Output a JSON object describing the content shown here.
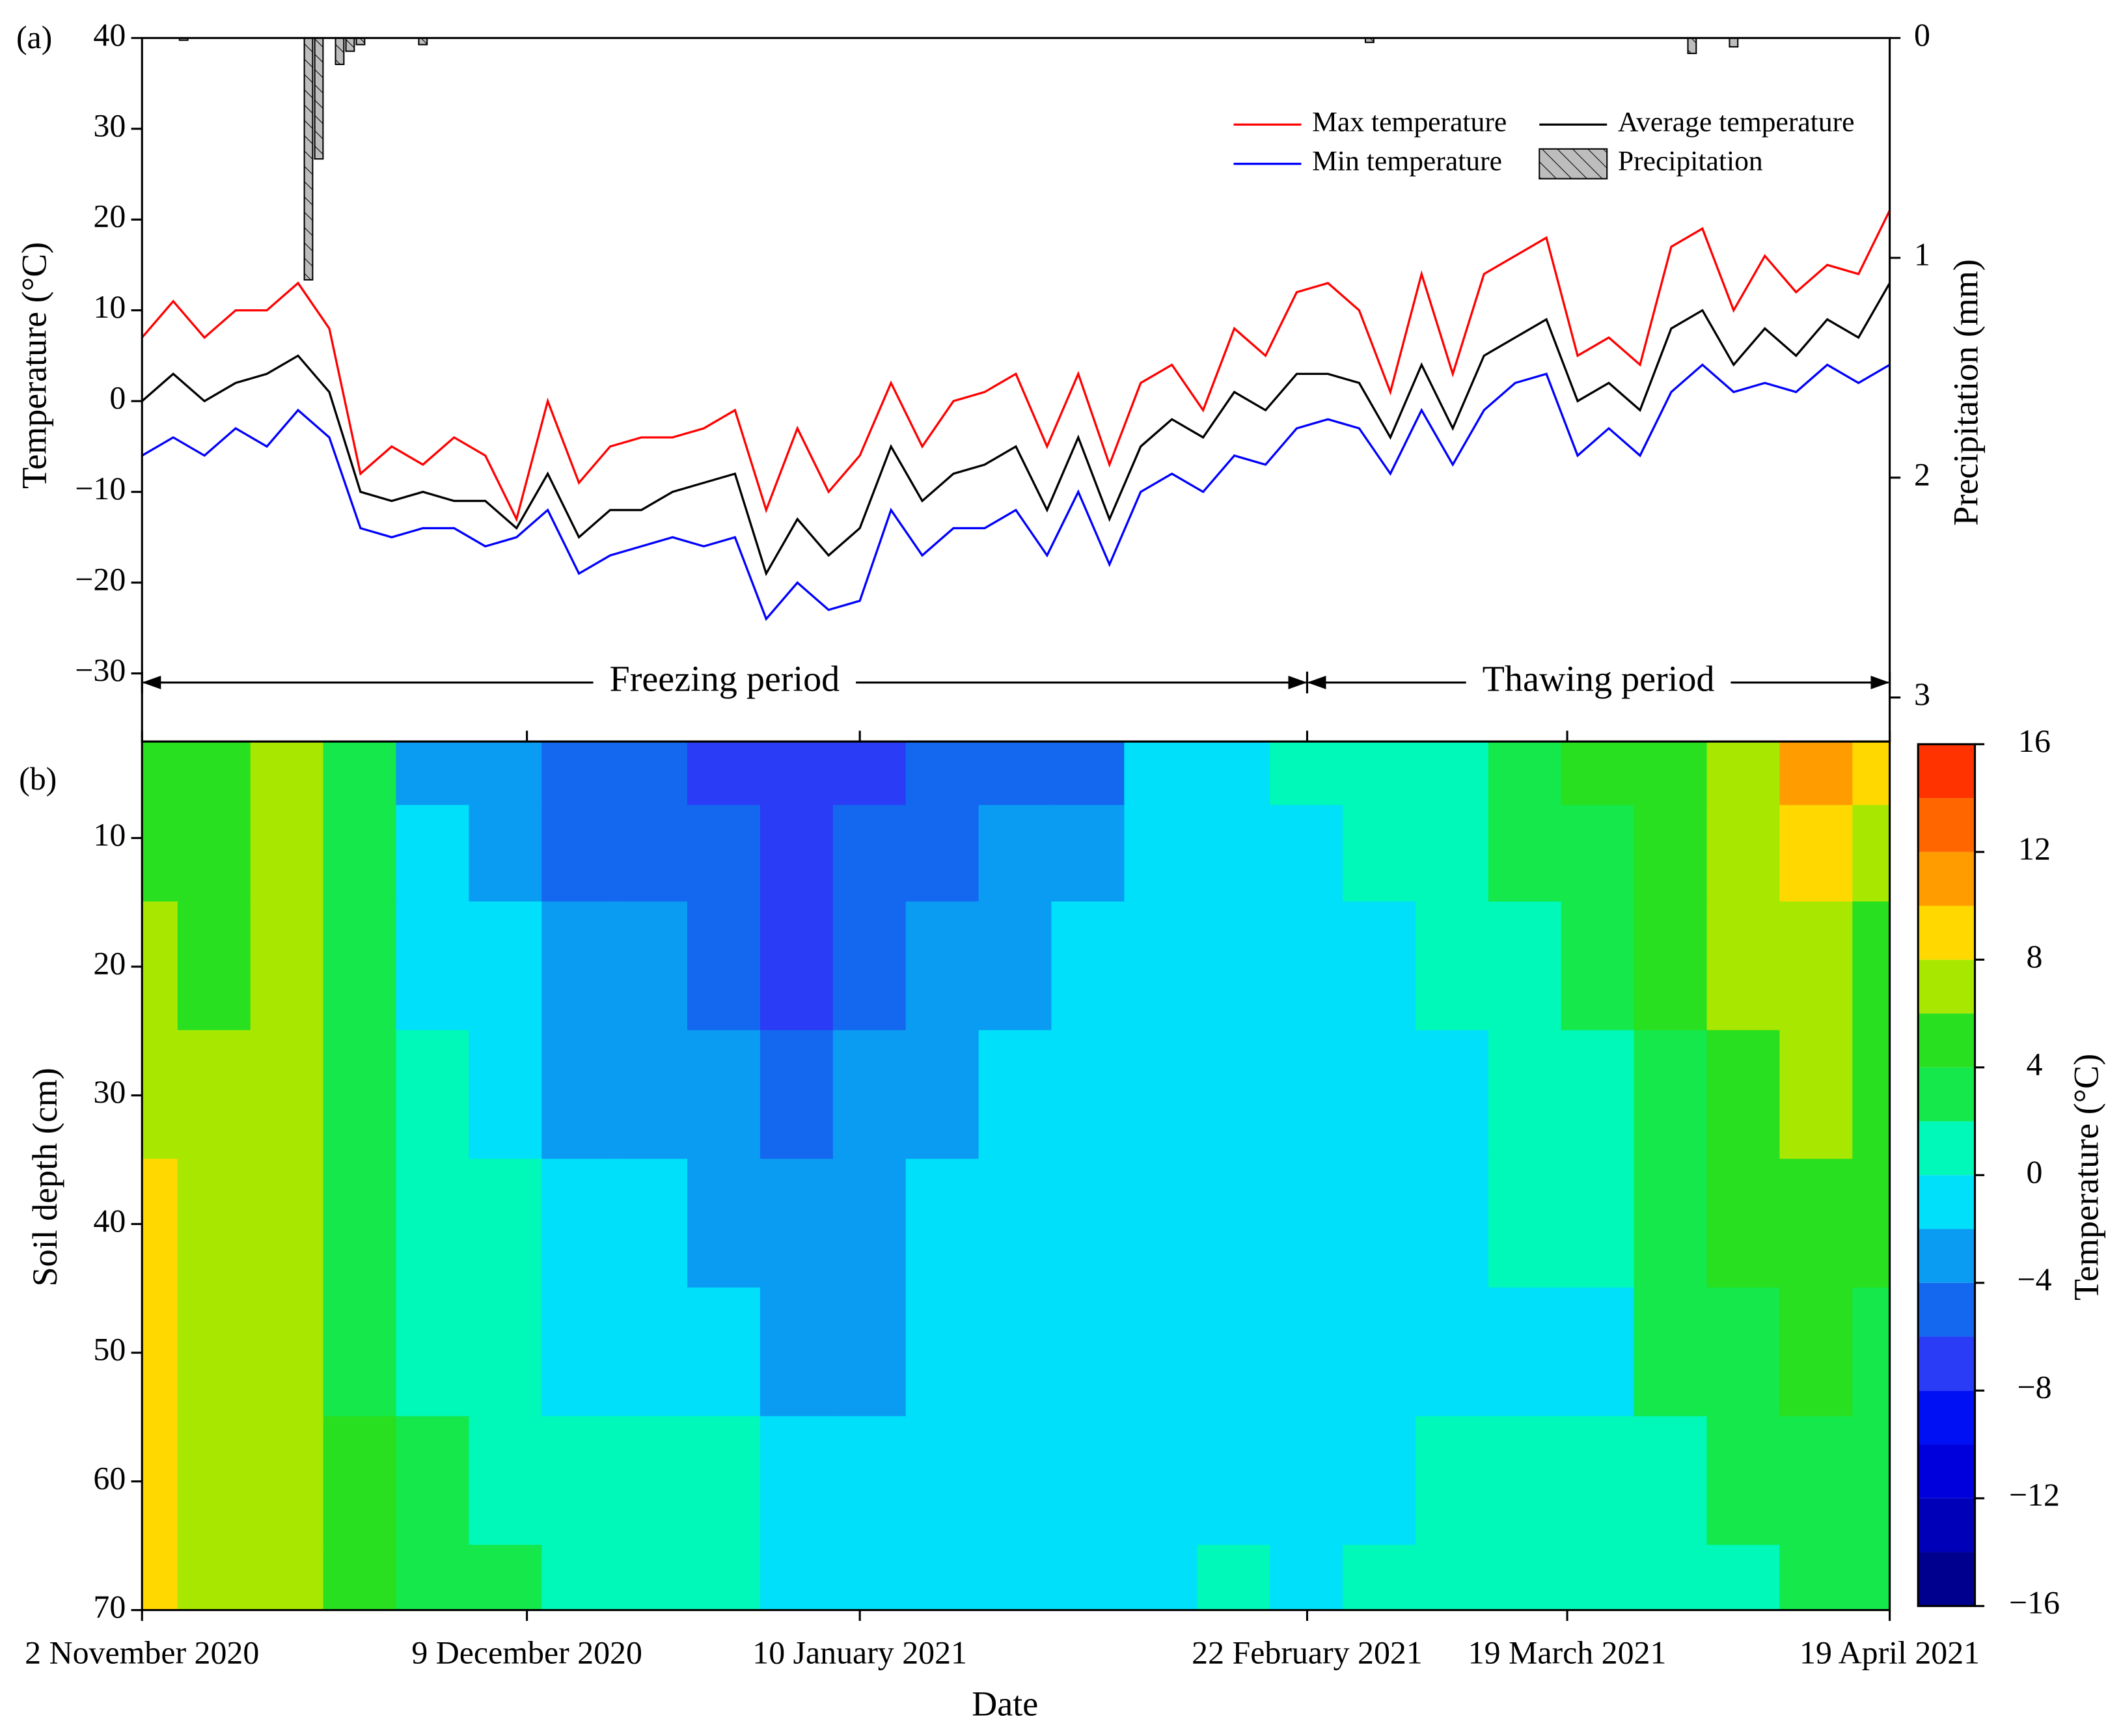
{
  "chart_data": [
    {
      "type": "line",
      "panel_label": "(a)",
      "y_label": "Temperature (°C)",
      "y2_label": "Precipitation (mm)",
      "xlim": [
        "2020-11-02",
        "2021-04-19"
      ],
      "xticks": [
        "2020-11-02",
        "2020-12-09",
        "2021-01-10",
        "2021-02-22",
        "2021-03-19",
        "2021-04-19"
      ],
      "ylim": [
        -37.5,
        40
      ],
      "yticks": [
        40,
        30,
        20,
        10,
        0,
        {
          "value": -10,
          "label": "−10"
        },
        {
          "value": -20,
          "label": "−20"
        },
        {
          "value": -30,
          "label": "−30"
        }
      ],
      "y2lim": [
        0,
        3.2
      ],
      "y2_inverted": true,
      "y2ticks": [
        0,
        1,
        2,
        3
      ],
      "legend": "upper right",
      "x": [
        "2020-11-02",
        "2020-11-05",
        "2020-11-08",
        "2020-11-11",
        "2020-11-14",
        "2020-11-17",
        "2020-11-20",
        "2020-11-23",
        "2020-11-26",
        "2020-11-29",
        "2020-12-02",
        "2020-12-05",
        "2020-12-08",
        "2020-12-11",
        "2020-12-14",
        "2020-12-17",
        "2020-12-20",
        "2020-12-23",
        "2020-12-26",
        "2020-12-29",
        "2021-01-01",
        "2021-01-04",
        "2021-01-07",
        "2021-01-10",
        "2021-01-13",
        "2021-01-16",
        "2021-01-19",
        "2021-01-22",
        "2021-01-25",
        "2021-01-28",
        "2021-01-31",
        "2021-02-03",
        "2021-02-06",
        "2021-02-09",
        "2021-02-12",
        "2021-02-15",
        "2021-02-18",
        "2021-02-21",
        "2021-02-24",
        "2021-02-27",
        "2021-03-02",
        "2021-03-05",
        "2021-03-08",
        "2021-03-11",
        "2021-03-14",
        "2021-03-17",
        "2021-03-20",
        "2021-03-23",
        "2021-03-26",
        "2021-03-29",
        "2021-04-01",
        "2021-04-04",
        "2021-04-07",
        "2021-04-10",
        "2021-04-13",
        "2021-04-16",
        "2021-04-19"
      ],
      "series": [
        {
          "name": "Max temperature",
          "color": "#ff0000",
          "values": [
            7,
            11,
            7,
            10,
            10,
            13,
            8,
            -8,
            -5,
            -7,
            -4,
            -6,
            -13,
            0,
            -9,
            -5,
            -4,
            -4,
            -3,
            -1,
            -12,
            -3,
            -10,
            -6,
            2,
            -5,
            0,
            1,
            3,
            -5,
            3,
            -7,
            2,
            4,
            -1,
            8,
            5,
            12,
            13,
            10,
            1,
            14,
            3,
            14,
            16,
            18,
            5,
            7,
            4,
            17,
            19,
            10,
            16,
            12,
            15,
            14,
            21
          ]
        },
        {
          "name": "Average temperature",
          "color": "#000000",
          "values": [
            0,
            3,
            0,
            2,
            3,
            5,
            1,
            -10,
            -11,
            -10,
            -11,
            -11,
            -14,
            -8,
            -15,
            -12,
            -12,
            -10,
            -9,
            -8,
            -19,
            -13,
            -17,
            -14,
            -5,
            -11,
            -8,
            -7,
            -5,
            -12,
            -4,
            -13,
            -5,
            -2,
            -4,
            1,
            -1,
            3,
            3,
            2,
            -4,
            4,
            -3,
            5,
            7,
            9,
            0,
            2,
            -1,
            8,
            10,
            4,
            8,
            5,
            9,
            7,
            13
          ]
        },
        {
          "name": "Min temperature",
          "color": "#0000ff",
          "values": [
            -6,
            -4,
            -6,
            -3,
            -5,
            -1,
            -4,
            -14,
            -15,
            -14,
            -14,
            -16,
            -15,
            -12,
            -19,
            -17,
            -16,
            -15,
            -16,
            -15,
            -24,
            -20,
            -23,
            -22,
            -12,
            -17,
            -14,
            -14,
            -12,
            -17,
            -10,
            -18,
            -10,
            -8,
            -10,
            -6,
            -7,
            -3,
            -2,
            -3,
            -8,
            -1,
            -7,
            -1,
            2,
            3,
            -6,
            -3,
            -6,
            1,
            4,
            1,
            2,
            1,
            4,
            2,
            4
          ]
        },
        {
          "name": "Precipitation",
          "type": "bar",
          "axis": "y2",
          "color": "#bdbdbd",
          "x": [
            "2020-11-06",
            "2020-11-18",
            "2020-11-19",
            "2020-11-21",
            "2020-11-22",
            "2020-11-23",
            "2020-11-29",
            "2021-02-28",
            "2021-03-31",
            "2021-04-04"
          ],
          "values": [
            0.01,
            1.1,
            0.55,
            0.12,
            0.06,
            0.03,
            0.03,
            0.02,
            0.07,
            0.04
          ]
        }
      ],
      "annotations": [
        {
          "text": "Freezing period",
          "x": [
            "2020-11-02",
            "2021-02-22"
          ],
          "y": -31
        },
        {
          "text": "Thawing period",
          "x": [
            "2021-02-22",
            "2021-04-19"
          ],
          "y": -31
        }
      ]
    },
    {
      "type": "contour",
      "panel_label": "(b)",
      "x_label": "Date",
      "y_label": "Soil depth (cm)",
      "colorbar_label": "Temperature (°C)",
      "xlim": [
        "2020-11-02",
        "2021-04-19"
      ],
      "xticks": [
        {
          "value": "2020-11-02",
          "label": "2 November 2020"
        },
        {
          "value": "2020-12-09",
          "label": "9 December 2020"
        },
        {
          "value": "2021-01-10",
          "label": "10 January 2021"
        },
        {
          "value": "2021-02-22",
          "label": "22 February 2021"
        },
        {
          "value": "2021-03-19",
          "label": "19 March 2021"
        },
        {
          "value": "2021-04-19",
          "label": "19 April 2021"
        }
      ],
      "ylim": [
        2.5,
        70
      ],
      "y_inverted": true,
      "yticks": [
        10,
        20,
        30,
        40,
        50,
        60,
        70
      ],
      "x": [
        "2020-11-02",
        "2020-11-09",
        "2020-11-16",
        "2020-11-23",
        "2020-11-30",
        "2020-12-07",
        "2020-12-14",
        "2020-12-21",
        "2020-12-28",
        "2021-01-04",
        "2021-01-11",
        "2021-01-18",
        "2021-01-25",
        "2021-02-01",
        "2021-02-08",
        "2021-02-15",
        "2021-02-22",
        "2021-03-01",
        "2021-03-08",
        "2021-03-15",
        "2021-03-22",
        "2021-03-29",
        "2021-04-05",
        "2021-04-12",
        "2021-04-19"
      ],
      "y": [
        5,
        10,
        20,
        30,
        40,
        50,
        60,
        70
      ],
      "z": [
        [
          5,
          5,
          7,
          3,
          -3,
          -3,
          -5,
          -5,
          -7,
          -7,
          -7,
          -5,
          -5,
          -5,
          -1,
          -1,
          1,
          1,
          1,
          3,
          5,
          5,
          7,
          11,
          9
        ],
        [
          5,
          5,
          7,
          3,
          -1,
          -3,
          -5,
          -5,
          -5,
          -7,
          -5,
          -5,
          -3,
          -3,
          -1,
          -1,
          -1,
          1,
          1,
          3,
          3,
          5,
          7,
          9,
          7
        ],
        [
          7,
          5,
          7,
          3,
          -1,
          -1,
          -3,
          -3,
          -5,
          -7,
          -5,
          -3,
          -3,
          -1,
          -1,
          -1,
          -1,
          -1,
          1,
          1,
          3,
          5,
          7,
          7,
          5
        ],
        [
          7,
          7,
          7,
          3,
          1,
          -1,
          -3,
          -3,
          -3,
          -5,
          -3,
          -3,
          -1,
          -1,
          -1,
          -1,
          -1,
          -1,
          -1,
          1,
          1,
          3,
          5,
          7,
          5
        ],
        [
          9,
          7,
          7,
          3,
          1,
          1,
          -1,
          -1,
          -3,
          -3,
          -3,
          -1,
          -1,
          -1,
          -1,
          -1,
          -1,
          -1,
          -1,
          1,
          1,
          3,
          5,
          5,
          5
        ],
        [
          9,
          7,
          7,
          3,
          1,
          1,
          -1,
          -1,
          -1,
          -3,
          -3,
          -1,
          -1,
          -1,
          -1,
          -1,
          -1,
          -1,
          -1,
          -1,
          -1,
          3,
          3,
          5,
          3
        ],
        [
          9,
          7,
          7,
          5,
          3,
          1,
          1,
          1,
          1,
          -1,
          -1,
          -1,
          -1,
          -1,
          -1,
          -1,
          -1,
          -1,
          1,
          1,
          1,
          1,
          3,
          3,
          3
        ],
        [
          9,
          7,
          7,
          5,
          3,
          3,
          1,
          1,
          1,
          -1,
          -1,
          -1,
          -1,
          -1,
          -1,
          1,
          -1,
          1,
          1,
          1,
          1,
          1,
          1,
          3,
          3
        ]
      ],
      "levels": [
        -16,
        -14,
        -12,
        -10,
        -8,
        -6,
        -4,
        -2,
        0,
        2,
        4,
        6,
        8,
        10,
        12,
        14,
        16
      ],
      "colors": [
        "#00008f",
        "#0000b8",
        "#0000dd",
        "#0010f5",
        "#2a3cf5",
        "#1468f0",
        "#0a9cf2",
        "#00e0fa",
        "#00f8b8",
        "#14e84a",
        "#28e020",
        "#a8e800",
        "#ffd800",
        "#ff9c00",
        "#ff6600",
        "#ff3300",
        "#ff0000"
      ],
      "colorbar_ticks": [
        {
          "value": -16,
          "label": "−16"
        },
        {
          "value": -12,
          "label": "−12"
        },
        {
          "value": -8,
          "label": "−8"
        },
        {
          "value": -4,
          "label": "−4"
        },
        0,
        4,
        8,
        12,
        16
      ]
    }
  ]
}
